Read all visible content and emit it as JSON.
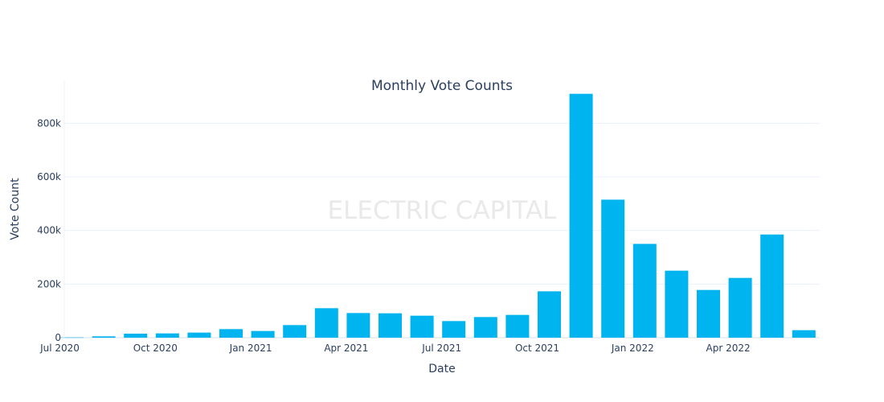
{
  "chart_data": {
    "type": "bar",
    "title": "Monthly Vote Counts",
    "xlabel": "Date",
    "ylabel": "Vote Count",
    "watermark": "ELECTRIC CAPITAL",
    "bar_color": "#00b4ef",
    "grid": true,
    "ylim": [
      0,
      960000
    ],
    "y_ticks": [
      {
        "value": 0,
        "label": "0"
      },
      {
        "value": 200000,
        "label": "200k"
      },
      {
        "value": 400000,
        "label": "400k"
      },
      {
        "value": 600000,
        "label": "600k"
      },
      {
        "value": 800000,
        "label": "800k"
      }
    ],
    "x_ticks": [
      {
        "index": 0,
        "label": "Jul 2020"
      },
      {
        "index": 3,
        "label": "Oct 2020"
      },
      {
        "index": 6,
        "label": "Jan 2021"
      },
      {
        "index": 9,
        "label": "Apr 2021"
      },
      {
        "index": 12,
        "label": "Jul 2021"
      },
      {
        "index": 15,
        "label": "Oct 2021"
      },
      {
        "index": 18,
        "label": "Jan 2022"
      },
      {
        "index": 21,
        "label": "Apr 2022"
      }
    ],
    "categories": [
      "Jul 2020",
      "Aug 2020",
      "Sep 2020",
      "Oct 2020",
      "Nov 2020",
      "Dec 2020",
      "Jan 2021",
      "Feb 2021",
      "Mar 2021",
      "Apr 2021",
      "May 2021",
      "Jun 2021",
      "Jul 2021",
      "Aug 2021",
      "Sep 2021",
      "Oct 2021",
      "Nov 2021",
      "Dec 2021",
      "Jan 2022",
      "Feb 2022",
      "Mar 2022",
      "Apr 2022",
      "May 2022",
      "Jun 2022"
    ],
    "values": [
      1000,
      5000,
      15000,
      16000,
      19000,
      32000,
      25000,
      47000,
      110000,
      92000,
      91000,
      82000,
      62000,
      77000,
      85000,
      173000,
      910000,
      515000,
      350000,
      250000,
      178000,
      223000,
      385000,
      28000
    ]
  }
}
